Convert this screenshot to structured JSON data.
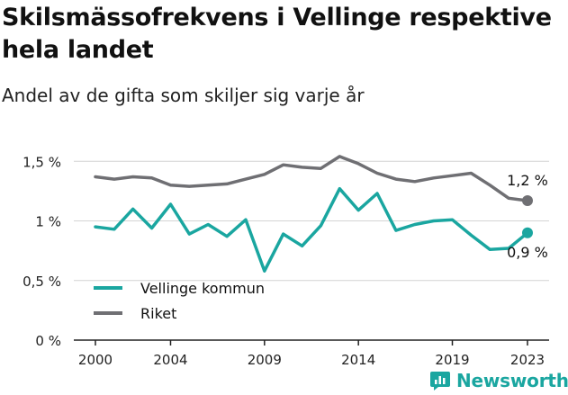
{
  "title": "Skilsmässofrekvens i Vellinge respektive hela landet",
  "subtitle": "Andel av de gifta som skiljer sig varje år",
  "brand": "Newsworthy",
  "colors": {
    "vellinge": "#1aa6a0",
    "riket": "#6f6f73",
    "grid": "#d4d4d4",
    "axis": "#222222"
  },
  "chart_data": {
    "type": "line",
    "x": [
      2000,
      2001,
      2002,
      2003,
      2004,
      2005,
      2006,
      2007,
      2008,
      2009,
      2010,
      2011,
      2012,
      2013,
      2014,
      2015,
      2016,
      2017,
      2018,
      2019,
      2020,
      2021,
      2022,
      2023
    ],
    "series": [
      {
        "name": "Vellinge kommun",
        "color": "#1aa6a0",
        "values": [
          0.95,
          0.93,
          1.1,
          0.94,
          1.14,
          0.89,
          0.97,
          0.87,
          1.01,
          0.58,
          0.89,
          0.79,
          0.96,
          1.27,
          1.09,
          1.23,
          0.92,
          0.97,
          1.0,
          1.01,
          0.88,
          0.76,
          0.77,
          0.9
        ],
        "end_label": "0,9 %"
      },
      {
        "name": "Riket",
        "color": "#6f6f73",
        "values": [
          1.37,
          1.35,
          1.37,
          1.36,
          1.3,
          1.29,
          1.3,
          1.31,
          1.35,
          1.39,
          1.47,
          1.45,
          1.44,
          1.54,
          1.48,
          1.4,
          1.35,
          1.33,
          1.36,
          1.38,
          1.4,
          1.3,
          1.19,
          1.17
        ],
        "end_label": "1,2 %"
      }
    ],
    "y_ticks": [
      0,
      0.5,
      1,
      1.5
    ],
    "y_tick_labels": [
      "0 %",
      "0,5 %",
      "1 %",
      "1,5 %"
    ],
    "x_ticks": [
      2000,
      2004,
      2009,
      2014,
      2019,
      2023
    ],
    "x_tick_labels": [
      "2000",
      "2004",
      "2009",
      "2014",
      "2019",
      "2023"
    ],
    "xlim": [
      2000,
      2023
    ],
    "ylim": [
      0,
      1.6
    ],
    "grid": true,
    "legend": [
      "Vellinge kommun",
      "Riket"
    ],
    "legend_position": "bottom-left"
  }
}
